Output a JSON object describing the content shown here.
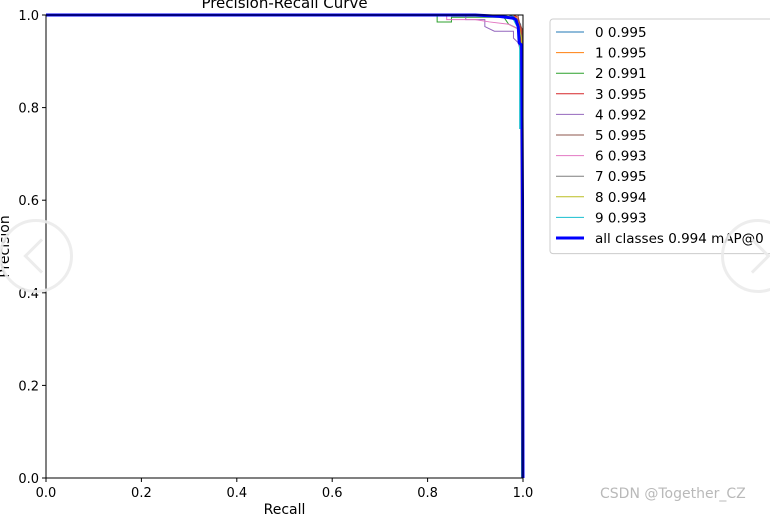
{
  "chart_data": {
    "type": "line",
    "title": "Precision-Recall Curve",
    "xlabel": "Recall",
    "ylabel": "Precision",
    "xlim": [
      0.0,
      1.0
    ],
    "ylim": [
      0.0,
      1.0
    ],
    "xticks": [
      "0.0",
      "0.2",
      "0.4",
      "0.6",
      "0.8",
      "1.0"
    ],
    "yticks": [
      "0.0",
      "0.2",
      "0.4",
      "0.6",
      "0.8",
      "1.0"
    ],
    "grid": false,
    "legend_position": "outside right",
    "series": [
      {
        "name": "0 0.995",
        "color": "#1f77b4",
        "width": 1,
        "points": [
          [
            0,
            1
          ],
          [
            0.97,
            1
          ],
          [
            0.985,
            0.995
          ],
          [
            0.995,
            0.98
          ],
          [
            0.997,
            0.6
          ],
          [
            0.998,
            0
          ]
        ]
      },
      {
        "name": "1 0.995",
        "color": "#ff7f0e",
        "width": 1,
        "points": [
          [
            0,
            1
          ],
          [
            0.98,
            1
          ],
          [
            0.99,
            0.99
          ],
          [
            0.997,
            0.95
          ],
          [
            0.998,
            0
          ]
        ]
      },
      {
        "name": "2 0.991",
        "color": "#2ca02c",
        "width": 1,
        "points": [
          [
            0,
            1
          ],
          [
            0.82,
            1
          ],
          [
            0.82,
            0.985
          ],
          [
            0.85,
            0.985
          ],
          [
            0.85,
            0.995
          ],
          [
            0.96,
            0.995
          ],
          [
            0.97,
            0.98
          ],
          [
            0.99,
            0.97
          ],
          [
            0.995,
            0.95
          ],
          [
            0.997,
            0
          ]
        ]
      },
      {
        "name": "3 0.995",
        "color": "#d62728",
        "width": 1,
        "points": [
          [
            0,
            1
          ],
          [
            0.98,
            1
          ],
          [
            0.99,
            0.995
          ],
          [
            0.996,
            0.97
          ],
          [
            0.998,
            0
          ]
        ]
      },
      {
        "name": "4 0.992",
        "color": "#9467bd",
        "width": 1,
        "points": [
          [
            0,
            1
          ],
          [
            0.88,
            1
          ],
          [
            0.88,
            0.99
          ],
          [
            0.92,
            0.99
          ],
          [
            0.92,
            0.975
          ],
          [
            0.94,
            0.965
          ],
          [
            0.98,
            0.965
          ],
          [
            0.98,
            0.95
          ],
          [
            0.99,
            0.94
          ],
          [
            0.995,
            0.92
          ],
          [
            0.998,
            0
          ]
        ]
      },
      {
        "name": "5 0.995",
        "color": "#8c564b",
        "width": 1,
        "points": [
          [
            0,
            1
          ],
          [
            0.99,
            1
          ],
          [
            0.99,
            0.99
          ],
          [
            0.998,
            0.97
          ],
          [
            0.999,
            0
          ]
        ]
      },
      {
        "name": "6 0.993",
        "color": "#e377c2",
        "width": 1,
        "points": [
          [
            0,
            1
          ],
          [
            0.84,
            1
          ],
          [
            0.84,
            0.99
          ],
          [
            0.9,
            0.99
          ],
          [
            0.93,
            0.985
          ],
          [
            0.97,
            0.98
          ],
          [
            0.99,
            0.97
          ],
          [
            0.996,
            0.9
          ],
          [
            0.998,
            0
          ]
        ]
      },
      {
        "name": "7 0.995",
        "color": "#7f7f7f",
        "width": 1,
        "points": [
          [
            0,
            1
          ],
          [
            1.0,
            1
          ],
          [
            1.0,
            0
          ]
        ]
      },
      {
        "name": "8 0.994",
        "color": "#bcbd22",
        "width": 1,
        "points": [
          [
            0,
            1
          ],
          [
            0.95,
            1
          ],
          [
            0.98,
            0.995
          ],
          [
            0.99,
            0.98
          ],
          [
            0.997,
            0.95
          ],
          [
            0.998,
            0
          ]
        ]
      },
      {
        "name": "9 0.993",
        "color": "#17becf",
        "width": 1,
        "points": [
          [
            0,
            1
          ],
          [
            0.96,
            1
          ],
          [
            0.98,
            0.99
          ],
          [
            0.99,
            0.97
          ],
          [
            0.993,
            0.93
          ],
          [
            0.993,
            0.755
          ],
          [
            0.995,
            0.755
          ],
          [
            0.995,
            0.9
          ],
          [
            0.997,
            0.87
          ],
          [
            0.998,
            0
          ]
        ]
      },
      {
        "name": "all classes 0.994 mAP@0",
        "color": "#0000ff",
        "width": 3,
        "points": [
          [
            0,
            1
          ],
          [
            0.9,
            1
          ],
          [
            0.95,
            0.997
          ],
          [
            0.98,
            0.993
          ],
          [
            0.985,
            0.99
          ],
          [
            0.99,
            0.975
          ],
          [
            0.992,
            0.94
          ],
          [
            0.997,
            0.935
          ],
          [
            0.999,
            0.6
          ],
          [
            1.0,
            0
          ]
        ]
      }
    ]
  },
  "watermark": "CSDN @Together_CZ",
  "colors": {
    "axis": "#000000",
    "background": "#ffffff",
    "watermark": "#b9b9b9"
  }
}
